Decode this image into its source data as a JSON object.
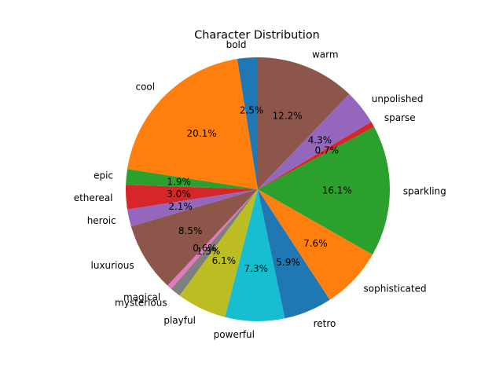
{
  "chart_data": {
    "type": "pie",
    "title": "Character Distribution",
    "start_angle_deg": 90,
    "direction": "counterclockwise",
    "legend": "none",
    "grid": false,
    "slices": [
      {
        "label": "bold",
        "pct_text": "2.5%",
        "value": 2.5,
        "color": "#1f77b4"
      },
      {
        "label": "cool",
        "pct_text": "20.1%",
        "value": 20.1,
        "color": "#ff7f0e"
      },
      {
        "label": "epic",
        "pct_text": "1.9%",
        "value": 1.9,
        "color": "#2ca02c"
      },
      {
        "label": "ethereal",
        "pct_text": "3.0%",
        "value": 3.0,
        "color": "#d62728"
      },
      {
        "label": "heroic",
        "pct_text": "2.1%",
        "value": 2.1,
        "color": "#9467bd"
      },
      {
        "label": "luxurious",
        "pct_text": "8.5%",
        "value": 8.5,
        "color": "#8c564b"
      },
      {
        "label": "magical",
        "pct_text": "0.6%",
        "value": 0.6,
        "color": "#e377c2"
      },
      {
        "label": "mysterious",
        "pct_text": "1.3%",
        "value": 1.3,
        "color": "#7f7f7f"
      },
      {
        "label": "playful",
        "pct_text": "6.1%",
        "value": 6.1,
        "color": "#bcbd22"
      },
      {
        "label": "powerful",
        "pct_text": "7.3%",
        "value": 7.3,
        "color": "#17becf"
      },
      {
        "label": "retro",
        "pct_text": "5.9%",
        "value": 5.9,
        "color": "#1f77b4"
      },
      {
        "label": "sophisticated",
        "pct_text": "7.6%",
        "value": 7.6,
        "color": "#ff7f0e"
      },
      {
        "label": "sparkling",
        "pct_text": "16.1%",
        "value": 16.1,
        "color": "#2ca02c"
      },
      {
        "label": "sparse",
        "pct_text": "0.7%",
        "value": 0.7,
        "color": "#d62728"
      },
      {
        "label": "unpolished",
        "pct_text": "4.3%",
        "value": 4.3,
        "color": "#9467bd"
      },
      {
        "label": "warm",
        "pct_text": "12.2%",
        "value": 12.2,
        "color": "#8c564b"
      }
    ]
  }
}
